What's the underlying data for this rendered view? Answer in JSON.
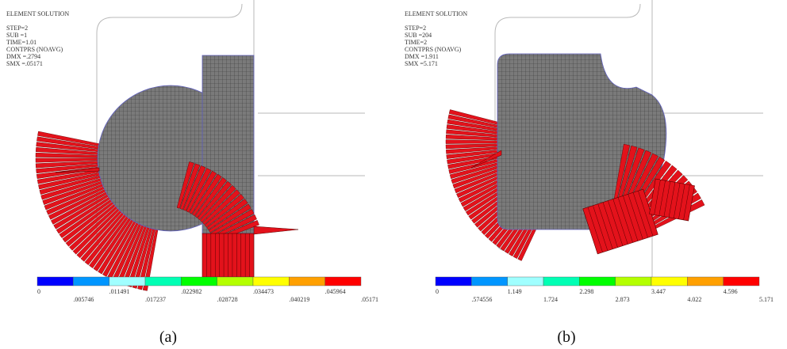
{
  "panels": [
    {
      "header": [
        "ELEMENT SOLUTION",
        "STEP=2",
        "SUB =1",
        "TIME=1.01",
        "CONTPRS (NOAVG)",
        "DMX =.2794",
        "SMX =.05171"
      ],
      "colorbar": {
        "labels": [
          "0",
          ".005746",
          ".011491",
          ".017237",
          ".022982",
          ".028728",
          ".034473",
          ".040219",
          ".045964",
          ".05171"
        ]
      },
      "caption": "(a)"
    },
    {
      "header": [
        "ELEMENT SOLUTION",
        "STEP=2",
        "SUB =204",
        "TIME=2",
        "CONTPRS (NOAVG)",
        "DMX =1.911",
        "SMX =5.171"
      ],
      "colorbar": {
        "labels": [
          "0",
          ".574556",
          "1.149",
          "1.724",
          "2.298",
          "2.873",
          "3.447",
          "4.022",
          "4.596",
          "5.171"
        ]
      },
      "caption": "(b)"
    }
  ]
}
